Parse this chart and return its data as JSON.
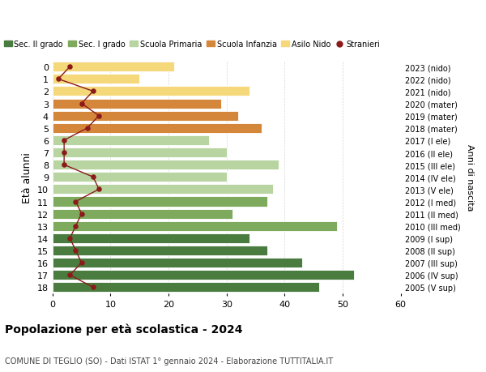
{
  "ages": [
    0,
    1,
    2,
    3,
    4,
    5,
    6,
    7,
    8,
    9,
    10,
    11,
    12,
    13,
    14,
    15,
    16,
    17,
    18
  ],
  "right_labels": [
    "2023 (nido)",
    "2022 (nido)",
    "2021 (nido)",
    "2020 (mater)",
    "2019 (mater)",
    "2018 (mater)",
    "2017 (I ele)",
    "2016 (II ele)",
    "2015 (III ele)",
    "2014 (IV ele)",
    "2013 (V ele)",
    "2012 (I med)",
    "2011 (II med)",
    "2010 (III med)",
    "2009 (I sup)",
    "2008 (II sup)",
    "2007 (III sup)",
    "2006 (IV sup)",
    "2005 (V sup)"
  ],
  "bar_values": [
    21,
    15,
    34,
    29,
    32,
    36,
    27,
    30,
    39,
    30,
    38,
    37,
    31,
    49,
    34,
    37,
    43,
    52,
    46
  ],
  "bar_colors": [
    "#f5d87a",
    "#f5d87a",
    "#f5d87a",
    "#d4873a",
    "#d4873a",
    "#d4873a",
    "#b8d4a0",
    "#b8d4a0",
    "#b8d4a0",
    "#b8d4a0",
    "#b8d4a0",
    "#7daa5c",
    "#7daa5c",
    "#7daa5c",
    "#4a7c3f",
    "#4a7c3f",
    "#4a7c3f",
    "#4a7c3f",
    "#4a7c3f"
  ],
  "stranieri_values": [
    3,
    1,
    7,
    5,
    8,
    6,
    2,
    2,
    2,
    7,
    8,
    4,
    5,
    4,
    3,
    4,
    5,
    3,
    7
  ],
  "stranieri_color": "#8b1a1a",
  "ylabel": "Età alunni",
  "right_ylabel": "Anni di nascita",
  "title_bold": "Popolazione per età scolastica - 2024",
  "subtitle": "COMUNE DI TEGLIO (SO) - Dati ISTAT 1° gennaio 2024 - Elaborazione TUTTITALIA.IT",
  "xlim": [
    0,
    60
  ],
  "xticks": [
    0,
    10,
    20,
    30,
    40,
    50,
    60
  ],
  "legend_labels": [
    "Sec. II grado",
    "Sec. I grado",
    "Scuola Primaria",
    "Scuola Infanzia",
    "Asilo Nido",
    "Stranieri"
  ],
  "legend_colors": [
    "#4a7c3f",
    "#7daa5c",
    "#b8d4a0",
    "#d4873a",
    "#f5d87a",
    "#8b1a1a"
  ],
  "background_color": "#ffffff",
  "grid_color": "#cccccc"
}
